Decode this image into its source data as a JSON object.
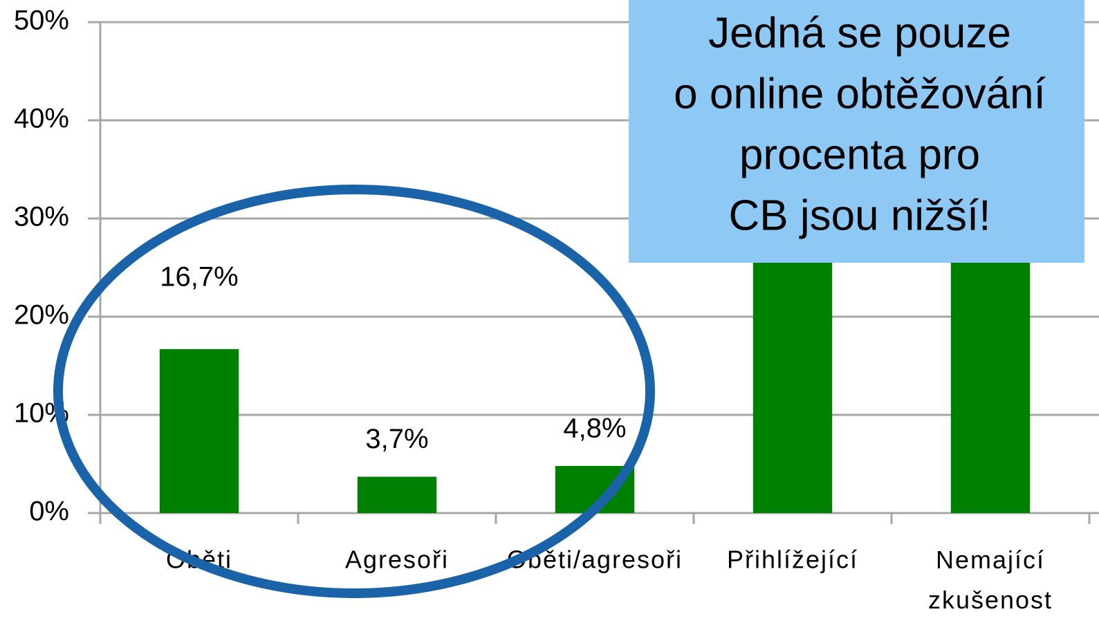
{
  "chart_data": {
    "type": "bar",
    "categories": [
      "Oběti",
      "Agresoři",
      "Oběti/agresoři",
      "Přihlížející",
      "Nemající zkušenost"
    ],
    "values": [
      16.7,
      3.7,
      4.8,
      31.5,
      29
    ],
    "value_labels": [
      "16,7%",
      "3,7%",
      "4,8%",
      null,
      null
    ],
    "color": "#008000",
    "ylim": [
      0,
      50
    ],
    "yticks": [
      {
        "value": 0,
        "label": "0%"
      },
      {
        "value": 10,
        "label": "10%"
      },
      {
        "value": 20,
        "label": "20%"
      },
      {
        "value": 30,
        "label": "30%"
      },
      {
        "value": 40,
        "label": "40%"
      },
      {
        "value": 50,
        "label": "50%"
      }
    ],
    "grid": true,
    "annotation": [
      "Jedná se pouze",
      "o online obtěžování",
      "procenta pro",
      "CB jsou nižší!"
    ]
  }
}
